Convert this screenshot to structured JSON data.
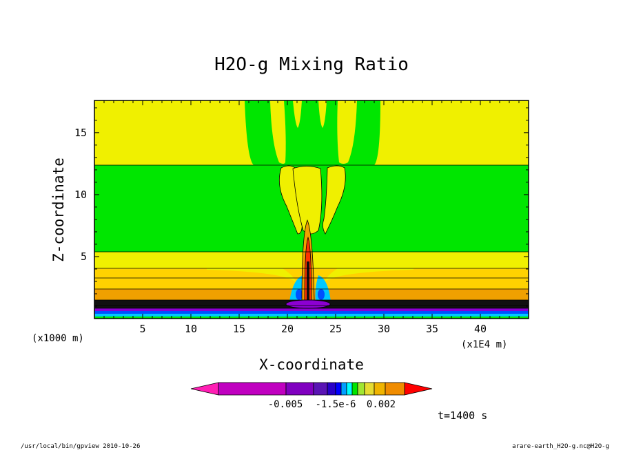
{
  "chart_data": {
    "type": "contour",
    "title": "H2O-g Mixing Ratio",
    "xlabel": "X-coordinate",
    "ylabel": "Z-coordinate",
    "x_unit_left": "(x1000 m)",
    "x_unit_right": "(x1E4 m)",
    "xlim": [
      0,
      45
    ],
    "ylim": [
      0,
      17.6
    ],
    "xticks": [
      5,
      10,
      15,
      20,
      25,
      30,
      35,
      40
    ],
    "yticks": [
      5,
      10,
      15
    ],
    "xtick_labels": [
      "5",
      "10",
      "15",
      "20",
      "25",
      "30",
      "35",
      "40"
    ],
    "ytick_labels": [
      "5",
      "10",
      "15"
    ],
    "colorbar": {
      "labels": [
        "-0.005",
        "-1.5e-6",
        "0.002"
      ],
      "colors": [
        "#ff1eb4",
        "#c000c0",
        "#8000c0",
        "#5a14b4",
        "#2800c8",
        "#0000ff",
        "#00a0ff",
        "#00ffff",
        "#00e600",
        "#a0e632",
        "#e6dc32",
        "#f0b400",
        "#f08c00",
        "#f06400",
        "#ff0000"
      ]
    },
    "time_label": "t=1400 s",
    "field_colors": {
      "yellow": "#f0f000",
      "green": "#00e600",
      "gold": "#ffd200",
      "orange": "#f0a000",
      "red": "#ff3200",
      "dark": "#101010",
      "purple": "#8c00d2",
      "blue": "#0050ff",
      "cyan": "#00c8ff"
    }
  },
  "footer": {
    "left": "/usr/local/bin/gpview  2010-10-26",
    "right": "arare-earth_H2O-g.nc@H2O-g"
  }
}
